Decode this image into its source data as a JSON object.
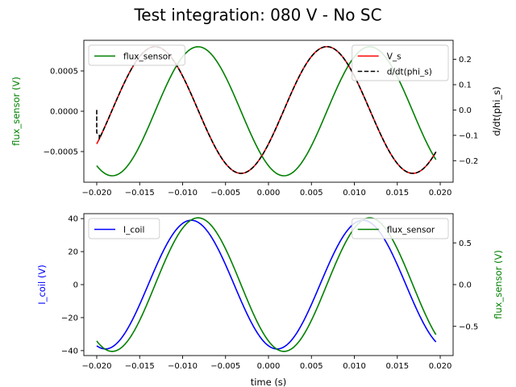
{
  "chart_data": {
    "suptitle": "Test integration: 080 V - No SC",
    "panels": [
      {
        "type": "line",
        "xlabel": "",
        "xlim": [
          -0.0215,
          0.0215
        ],
        "xticks": [
          -0.02,
          -0.015,
          -0.01,
          -0.005,
          0.0,
          0.005,
          0.01,
          0.015,
          0.02
        ],
        "xtick_labels": [
          "−0.020",
          "−0.015",
          "−0.010",
          "−0.005",
          "0.000",
          "0.005",
          "0.010",
          "0.015",
          "0.020"
        ],
        "left_axis": {
          "label": "flux_sensor (V)",
          "color": "#008000",
          "ylim": [
            -0.00088,
            0.00088
          ],
          "ticks": [
            -0.0005,
            0.0,
            0.0005
          ],
          "tick_labels": [
            "−0.0005",
            "0.0000",
            "0.0005"
          ]
        },
        "right_axis": {
          "label": "d/dt(phi_s)",
          "color": "#000000",
          "ylim": [
            -0.285,
            0.275
          ],
          "ticks": [
            -0.2,
            -0.1,
            0.0,
            0.1,
            0.2
          ],
          "tick_labels": [
            "−0.2",
            "−0.1",
            "0.0",
            "0.1",
            "0.2"
          ]
        },
        "series": [
          {
            "name": "flux_sensor",
            "axis": "left",
            "color": "#008000",
            "dash": "solid",
            "model": "sine",
            "amplitude": 0.0008,
            "freq_hz": 50,
            "peak_time": -0.0082,
            "x_start": -0.02,
            "x_end": 0.0195
          },
          {
            "name": "V_s",
            "axis": "right",
            "color": "#ff0000",
            "dash": "solid",
            "model": "sine",
            "amplitude": 0.25,
            "freq_hz": 50,
            "peak_time": 0.0068,
            "x_start": -0.02,
            "x_end": 0.0195
          },
          {
            "name": "d/dt(phi_s)",
            "axis": "right",
            "color": "#000000",
            "dash": "dashed",
            "model": "sine",
            "amplitude": 0.25,
            "freq_hz": 50,
            "peak_time": 0.0068,
            "x_start": -0.0197,
            "x_end": 0.0195,
            "start_points": [
              [
                -0.02,
                0.0
              ],
              [
                -0.02,
                -0.09
              ],
              [
                -0.0197,
                -0.1
              ]
            ]
          }
        ],
        "legends": [
          {
            "position": "upper left",
            "entries": [
              "flux_sensor"
            ]
          },
          {
            "position": "upper right",
            "entries": [
              "V_s",
              "d/dt(phi_s)"
            ]
          }
        ]
      },
      {
        "type": "line",
        "xlabel": "time (s)",
        "xlim": [
          -0.0215,
          0.0215
        ],
        "xticks": [
          -0.02,
          -0.015,
          -0.01,
          -0.005,
          0.0,
          0.005,
          0.01,
          0.015,
          0.02
        ],
        "xtick_labels": [
          "−0.020",
          "−0.015",
          "−0.010",
          "−0.005",
          "0.000",
          "0.005",
          "0.010",
          "0.015",
          "0.020"
        ],
        "left_axis": {
          "label": "I_coil (V)",
          "color": "#0000ff",
          "ylim": [
            -43,
            43
          ],
          "ticks": [
            -40,
            -20,
            0,
            20,
            40
          ],
          "tick_labels": [
            "−40",
            "−20",
            "0",
            "20",
            "40"
          ]
        },
        "right_axis": {
          "label": "flux_sensor (V)",
          "color": "#008000",
          "ylim": [
            -0.85,
            0.85
          ],
          "ticks": [
            -0.5,
            0.0,
            0.5
          ],
          "tick_labels": [
            "−0.5",
            "0.0",
            "0.5"
          ]
        },
        "series": [
          {
            "name": "I_coil",
            "axis": "left",
            "color": "#0000ff",
            "dash": "solid",
            "model": "sine",
            "amplitude": 39,
            "freq_hz": 50,
            "peak_time": -0.009,
            "x_start": -0.02,
            "x_end": 0.0195
          },
          {
            "name": "flux_sensor",
            "axis": "right",
            "color": "#008000",
            "dash": "solid",
            "model": "sine",
            "amplitude": 0.8,
            "freq_hz": 50,
            "peak_time": -0.0082,
            "x_start": -0.02,
            "x_end": 0.0195
          }
        ],
        "legends": [
          {
            "position": "upper left",
            "entries": [
              "I_coil"
            ]
          },
          {
            "position": "upper right",
            "entries": [
              "flux_sensor"
            ]
          }
        ]
      }
    ]
  }
}
